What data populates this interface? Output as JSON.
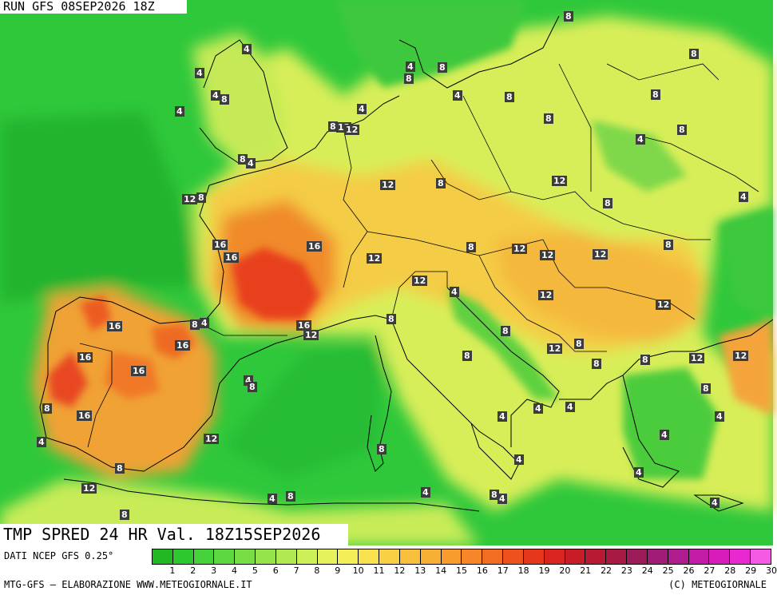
{
  "run_label": "RUN GFS 08SEP2026 18Z",
  "title": "TMP SPRED 24 HR Val. 18Z15SEP2026",
  "source": "DATI NCEP GFS 0.25°",
  "credit": "MTG-GFS – ELABORAZIONE WWW.METEOGIORNALE.IT",
  "copyright": "(C) METEOGIORNALE",
  "colorbar": {
    "ticks": [
      "1",
      "2",
      "3",
      "4",
      "5",
      "6",
      "7",
      "8",
      "9",
      "10",
      "11",
      "12",
      "13",
      "14",
      "15",
      "16",
      "17",
      "18",
      "19",
      "20",
      "21",
      "22",
      "23",
      "24",
      "25",
      "26",
      "27",
      "28",
      "29",
      "30"
    ],
    "colors": [
      "#22b822",
      "#2ec82e",
      "#46d23a",
      "#5ed840",
      "#78de46",
      "#94e44c",
      "#b0ea52",
      "#ccf058",
      "#e6f25c",
      "#f4ee58",
      "#f8e04e",
      "#f8d044",
      "#f8c03c",
      "#f8b034",
      "#f89c2e",
      "#f68628",
      "#f26c22",
      "#ee501e",
      "#e6361c",
      "#da2420",
      "#c81c28",
      "#b81a34",
      "#a81a44",
      "#9c1c5a",
      "#a01c78",
      "#b01c90",
      "#c41ca6",
      "#d81cbc",
      "#ea28d2",
      "#f45ae4"
    ]
  },
  "map_labels": [
    {
      "t": "8"
    },
    {
      "t": "4"
    },
    {
      "t": "4"
    },
    {
      "t": "8"
    },
    {
      "t": "4"
    },
    {
      "t": "8"
    },
    {
      "t": "4"
    },
    {
      "t": "8"
    },
    {
      "t": "8"
    },
    {
      "t": "8"
    },
    {
      "t": "4"
    },
    {
      "t": "4"
    },
    {
      "t": "8"
    },
    {
      "t": "12"
    },
    {
      "t": "4"
    },
    {
      "t": "8"
    },
    {
      "t": "8"
    },
    {
      "t": "8"
    },
    {
      "t": "4"
    },
    {
      "t": "12"
    },
    {
      "t": "8"
    },
    {
      "t": "4"
    },
    {
      "t": "12"
    },
    {
      "t": "12"
    },
    {
      "t": "8"
    },
    {
      "t": "8"
    },
    {
      "t": "8"
    },
    {
      "t": "4"
    },
    {
      "t": "16"
    },
    {
      "t": "16"
    },
    {
      "t": "16"
    },
    {
      "t": "12"
    },
    {
      "t": "8"
    },
    {
      "t": "12"
    },
    {
      "t": "12"
    },
    {
      "t": "12"
    },
    {
      "t": "8"
    },
    {
      "t": "12"
    },
    {
      "t": "4"
    },
    {
      "t": "12"
    },
    {
      "t": "12"
    },
    {
      "t": "16"
    },
    {
      "t": "8"
    },
    {
      "t": "4"
    },
    {
      "t": "16"
    },
    {
      "t": "12"
    },
    {
      "t": "8"
    },
    {
      "t": "8"
    },
    {
      "t": "16"
    },
    {
      "t": "16"
    },
    {
      "t": "12"
    },
    {
      "t": "8"
    },
    {
      "t": "12"
    },
    {
      "t": "8"
    },
    {
      "t": "8"
    },
    {
      "t": "12"
    },
    {
      "t": "12"
    },
    {
      "t": "16"
    },
    {
      "t": "4"
    },
    {
      "t": "8"
    },
    {
      "t": "8"
    },
    {
      "t": "8"
    },
    {
      "t": "16"
    },
    {
      "t": "4"
    },
    {
      "t": "4"
    },
    {
      "t": "4"
    },
    {
      "t": "4"
    },
    {
      "t": "4"
    },
    {
      "t": "12"
    },
    {
      "t": "8"
    },
    {
      "t": "4"
    },
    {
      "t": "8"
    },
    {
      "t": "4"
    },
    {
      "t": "8"
    },
    {
      "t": "12"
    },
    {
      "t": "4"
    },
    {
      "t": "4"
    },
    {
      "t": "8"
    },
    {
      "t": "8"
    },
    {
      "t": "4"
    },
    {
      "t": "8"
    },
    {
      "t": "4"
    },
    {
      "t": "4"
    }
  ]
}
